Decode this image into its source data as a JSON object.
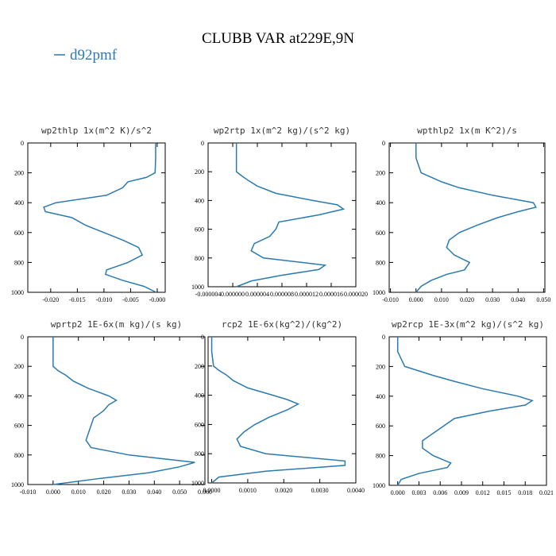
{
  "title": "CLUBB VAR at229E,9N",
  "chart_data": [
    {
      "type": "line",
      "title": "wp2thlp  1x(m^2 K)/s^2",
      "xlim": [
        -0.0243,
        0.0015
      ],
      "ylim": [
        1000,
        0
      ],
      "xticks": [
        {
          "value": -0.02,
          "label": "-0.020"
        },
        {
          "value": -0.015,
          "label": "-0.015"
        },
        {
          "value": -0.01,
          "label": "-0.010"
        },
        {
          "value": -0.005,
          "label": "-0.005"
        },
        {
          "value": 0,
          "label": "-0.000"
        }
      ],
      "yticks": [
        0,
        200,
        400,
        600,
        800,
        1000
      ],
      "y": [
        0,
        100,
        200,
        230,
        260,
        300,
        350,
        400,
        430,
        460,
        500,
        550,
        600,
        650,
        700,
        750,
        800,
        850,
        880,
        920,
        960,
        1000
      ],
      "series": [
        {
          "name": "d92pmf",
          "color": "#2a7ab0",
          "values": [
            -0.0003,
            -0.0003,
            -0.0004,
            -0.002,
            -0.0055,
            -0.0065,
            -0.0095,
            -0.019,
            -0.0213,
            -0.021,
            -0.016,
            -0.0135,
            -0.01,
            -0.0065,
            -0.0035,
            -0.0028,
            -0.0055,
            -0.0095,
            -0.0097,
            -0.0065,
            -0.0025,
            -0.0002
          ]
        }
      ]
    },
    {
      "type": "line",
      "title": "wp2rtp  1x(m^2 kg)/(s^2 kg)",
      "xlim": [
        -4e-06,
        2e-05
      ],
      "ylim": [
        1000,
        0
      ],
      "xticks": [
        {
          "value": -4e-06,
          "label": "-0.000004"
        },
        {
          "value": 0,
          "label": "0.000000"
        },
        {
          "value": 4e-06,
          "label": "0.000004"
        },
        {
          "value": 8e-06,
          "label": "0.000008"
        },
        {
          "value": 1.2e-05,
          "label": "0.000012"
        },
        {
          "value": 1.6e-05,
          "label": "0.000016"
        },
        {
          "value": 2e-05,
          "label": "0.000020"
        }
      ],
      "yticks": [
        0,
        200,
        400,
        600,
        800,
        1000
      ],
      "y": [
        0,
        100,
        200,
        230,
        260,
        300,
        350,
        400,
        430,
        460,
        500,
        550,
        600,
        650,
        700,
        750,
        800,
        850,
        880,
        920,
        960,
        1000
      ],
      "series": [
        {
          "name": "d92pmf",
          "color": "#2a7ab0",
          "values": [
            6e-07,
            6e-07,
            6e-07,
            1.5e-06,
            2.5e-06,
            4e-06,
            7e-06,
            1.3e-05,
            1.7e-05,
            1.8e-05,
            1.4e-05,
            7.5e-06,
            7e-06,
            6e-06,
            3.5e-06,
            3e-06,
            5e-06,
            1.5e-05,
            1.4e-05,
            8e-06,
            3e-06,
            6e-07
          ]
        }
      ]
    },
    {
      "type": "line",
      "title": "wpthlp2  1x(m K^2)/s",
      "xlim": [
        -0.0105,
        0.0505
      ],
      "ylim": [
        1000,
        0
      ],
      "xticks": [
        {
          "value": -0.01,
          "label": "-0.010"
        },
        {
          "value": 0,
          "label": "0.000"
        },
        {
          "value": 0.01,
          "label": "0.010"
        },
        {
          "value": 0.02,
          "label": "0.020"
        },
        {
          "value": 0.03,
          "label": "0.030"
        },
        {
          "value": 0.04,
          "label": "0.040"
        },
        {
          "value": 0.05,
          "label": "0.050"
        }
      ],
      "yticks": [
        0,
        200,
        400,
        600,
        800,
        1000
      ],
      "y": [
        0,
        100,
        200,
        230,
        260,
        300,
        350,
        400,
        430,
        460,
        500,
        550,
        600,
        650,
        700,
        750,
        800,
        850,
        880,
        920,
        960,
        1000
      ],
      "series": [
        {
          "name": "d92pmf",
          "color": "#2a7ab0",
          "values": [
            0,
            0,
            0.002,
            0.006,
            0.01,
            0.017,
            0.03,
            0.046,
            0.047,
            0.04,
            0.032,
            0.024,
            0.017,
            0.013,
            0.012,
            0.015,
            0.021,
            0.019,
            0.012,
            0.006,
            0.002,
            0
          ]
        }
      ]
    },
    {
      "type": "line",
      "title": "wprtp2  1E-6x(m kg)/(s kg)",
      "xlim": [
        -0.01,
        0.06
      ],
      "ylim": [
        1000,
        0
      ],
      "xticks": [
        {
          "value": -0.01,
          "label": "-0.010"
        },
        {
          "value": 0,
          "label": "0.000"
        },
        {
          "value": 0.01,
          "label": "0.010"
        },
        {
          "value": 0.02,
          "label": "0.020"
        },
        {
          "value": 0.03,
          "label": "0.030"
        },
        {
          "value": 0.04,
          "label": "0.040"
        },
        {
          "value": 0.05,
          "label": "0.050"
        },
        {
          "value": 0.06,
          "label": "0.060"
        }
      ],
      "yticks": [
        0,
        200,
        400,
        600,
        800,
        1000
      ],
      "y": [
        0,
        100,
        200,
        230,
        260,
        300,
        350,
        400,
        430,
        460,
        500,
        550,
        600,
        650,
        700,
        750,
        800,
        850,
        880,
        920,
        960,
        1000
      ],
      "series": [
        {
          "name": "d92pmf",
          "color": "#2a7ab0",
          "values": [
            0,
            0,
            0,
            0.002,
            0.005,
            0.008,
            0.014,
            0.022,
            0.025,
            0.022,
            0.02,
            0.016,
            0.015,
            0.014,
            0.013,
            0.015,
            0.03,
            0.056,
            0.05,
            0.038,
            0.018,
            0
          ]
        }
      ]
    },
    {
      "type": "line",
      "title": "rcp2  1E-6x(kg^2)/(kg^2)",
      "xlim": [
        -0.0001,
        0.004
      ],
      "ylim": [
        1000,
        0
      ],
      "xticks": [
        {
          "value": 0,
          "label": "0.0000"
        },
        {
          "value": 0.001,
          "label": "0.0010"
        },
        {
          "value": 0.002,
          "label": "0.0020"
        },
        {
          "value": 0.003,
          "label": "0.0030"
        },
        {
          "value": 0.004,
          "label": "0.0040"
        }
      ],
      "yticks": [
        0,
        200,
        400,
        600,
        800,
        1000
      ],
      "y": [
        0,
        100,
        200,
        230,
        260,
        300,
        350,
        400,
        430,
        460,
        500,
        550,
        600,
        650,
        700,
        750,
        800,
        850,
        880,
        920,
        960,
        1000
      ],
      "series": [
        {
          "name": "d92pmf",
          "color": "#2a7ab0",
          "values": [
            0,
            0,
            5e-05,
            0.0002,
            0.0004,
            0.0006,
            0.001,
            0.0017,
            0.0021,
            0.0024,
            0.0021,
            0.0016,
            0.0012,
            0.0009,
            0.0007,
            0.0008,
            0.0015,
            0.0037,
            0.0037,
            0.0015,
            0.0002,
            0
          ]
        }
      ]
    },
    {
      "type": "line",
      "title": "wp2rcp  1E-3x(m^2 kg)/(s^2 kg)",
      "xlim": [
        -0.0012,
        0.021
      ],
      "ylim": [
        1000,
        0
      ],
      "xticks": [
        {
          "value": 0,
          "label": "0.000"
        },
        {
          "value": 0.003,
          "label": "0.003"
        },
        {
          "value": 0.006,
          "label": "0.006"
        },
        {
          "value": 0.009,
          "label": "0.009"
        },
        {
          "value": 0.012,
          "label": "0.012"
        },
        {
          "value": 0.015,
          "label": "0.015"
        },
        {
          "value": 0.018,
          "label": "0.018"
        },
        {
          "value": 0.021,
          "label": "0.021"
        }
      ],
      "yticks": [
        0,
        200,
        400,
        600,
        800,
        1000
      ],
      "y": [
        0,
        100,
        200,
        230,
        260,
        300,
        350,
        400,
        430,
        460,
        500,
        550,
        600,
        650,
        700,
        750,
        800,
        850,
        880,
        920,
        960,
        1000
      ],
      "series": [
        {
          "name": "d92pmf",
          "color": "#2a7ab0",
          "values": [
            0,
            0,
            0.001,
            0.003,
            0.005,
            0.008,
            0.012,
            0.017,
            0.019,
            0.018,
            0.013,
            0.008,
            0.0065,
            0.005,
            0.0035,
            0.0035,
            0.005,
            0.0075,
            0.007,
            0.003,
            0.0005,
            0
          ]
        }
      ]
    }
  ]
}
